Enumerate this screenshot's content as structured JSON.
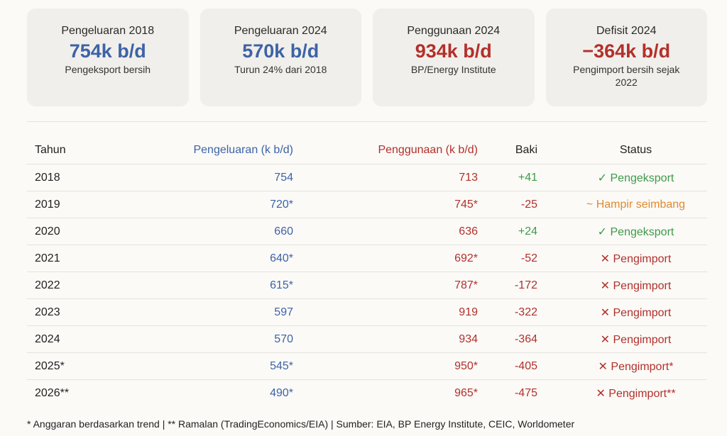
{
  "cards": [
    {
      "title": "Pengeluaran 2018",
      "value": "754k b/d",
      "sub": "Pengeksport bersih",
      "color": "blue"
    },
    {
      "title": "Pengeluaran 2024",
      "value": "570k b/d",
      "sub": "Turun 24% dari 2018",
      "color": "blue"
    },
    {
      "title": "Penggunaan 2024",
      "value": "934k b/d",
      "sub": "BP/Energy Institute",
      "color": "red"
    },
    {
      "title": "Defisit 2024",
      "value": "−364k b/d",
      "sub": "Pengimport bersih sejak 2022",
      "color": "red"
    }
  ],
  "table": {
    "headers": [
      "Tahun",
      "Pengeluaran (k b/d)",
      "Penggunaan (k b/d)",
      "Baki",
      "Status"
    ],
    "rows": [
      {
        "year": "2018",
        "prod": "754",
        "cons": "713",
        "bal": "+41",
        "status": "✓ Pengeksport",
        "tone": "green"
      },
      {
        "year": "2019",
        "prod": "720*",
        "cons": "745*",
        "bal": "-25",
        "status": "~ Hampir seimbang",
        "tone": "orange"
      },
      {
        "year": "2020",
        "prod": "660",
        "cons": "636",
        "bal": "+24",
        "status": "✓ Pengeksport",
        "tone": "green"
      },
      {
        "year": "2021",
        "prod": "640*",
        "cons": "692*",
        "bal": "-52",
        "status": "✕ Pengimport",
        "tone": "red"
      },
      {
        "year": "2022",
        "prod": "615*",
        "cons": "787*",
        "bal": "-172",
        "status": "✕ Pengimport",
        "tone": "red"
      },
      {
        "year": "2023",
        "prod": "597",
        "cons": "919",
        "bal": "-322",
        "status": "✕ Pengimport",
        "tone": "red"
      },
      {
        "year": "2024",
        "prod": "570",
        "cons": "934",
        "bal": "-364",
        "status": "✕ Pengimport",
        "tone": "red"
      },
      {
        "year": "2025*",
        "prod": "545*",
        "cons": "950*",
        "bal": "-405",
        "status": "✕ Pengimport*",
        "tone": "red"
      },
      {
        "year": "2026**",
        "prod": "490*",
        "cons": "965*",
        "bal": "-475",
        "status": "✕ Pengimport**",
        "tone": "red"
      }
    ]
  },
  "footnote": "* Anggaran berdasarkan trend | ** Ramalan (TradingEconomics/EIA) | Sumber: EIA, BP Energy Institute, CEIC, Worldometer"
}
